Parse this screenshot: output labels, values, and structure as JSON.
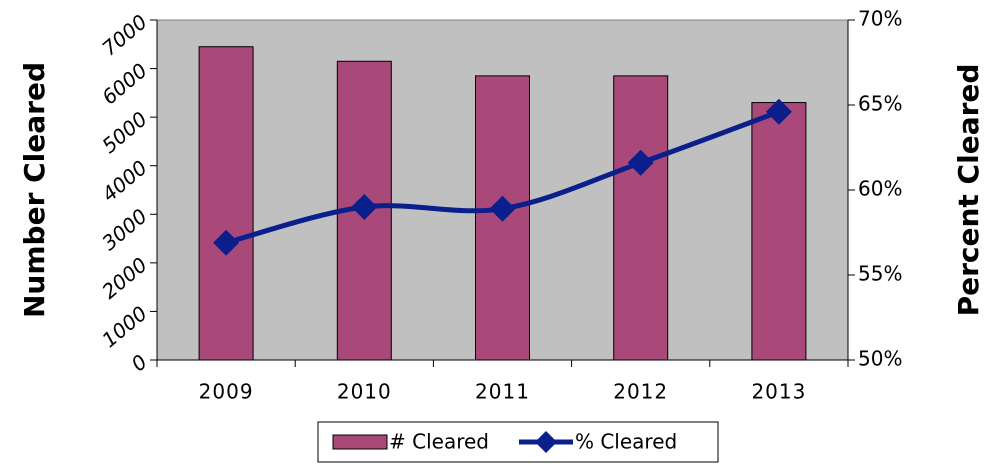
{
  "chart_data": {
    "type": "bar_line",
    "categories": [
      "2009",
      "2010",
      "2011",
      "2012",
      "2013"
    ],
    "series": [
      {
        "name": "# Cleared",
        "type": "bar",
        "color": "#a8497a",
        "values": [
          6450,
          6150,
          5850,
          5850,
          5300
        ]
      },
      {
        "name": "% Cleared",
        "type": "line",
        "color": "#0a1e8c",
        "axis": "y2",
        "values": [
          56.9,
          59.0,
          58.9,
          61.6,
          64.6
        ]
      }
    ],
    "ylabel": "Number Cleared",
    "y2label": "Percent Cleared",
    "ylim": [
      0,
      7000
    ],
    "yticks": [
      0,
      1000,
      2000,
      3000,
      4000,
      5000,
      6000,
      7000
    ],
    "y2lim": [
      50,
      70
    ],
    "y2ticks": [
      {
        "value": 50,
        "label": "50%"
      },
      {
        "value": 55,
        "label": "55%"
      },
      {
        "value": 60,
        "label": "60%"
      },
      {
        "value": 65,
        "label": "65%"
      },
      {
        "value": 70,
        "label": "70%"
      }
    ],
    "legend": "bottom"
  }
}
